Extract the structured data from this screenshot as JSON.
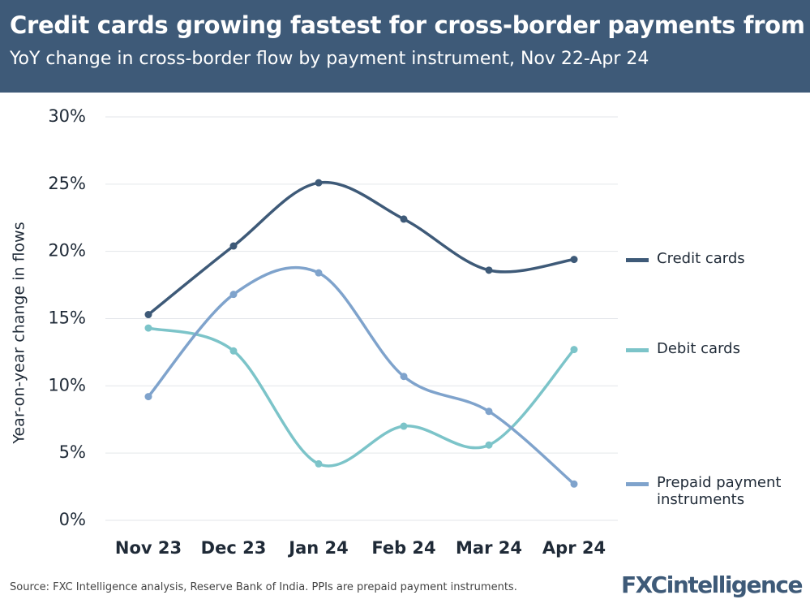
{
  "chart_data": {
    "type": "line",
    "title": "Credit cards growing fastest for cross-border payments from India",
    "subtitle": "YoY change in cross-border flow by payment instrument, Nov 22-Apr 24",
    "y_label": "Year-on-year change in flows",
    "categories": [
      "Nov 23",
      "Dec 23",
      "Jan 24",
      "Feb 24",
      "Mar 24",
      "Apr 24"
    ],
    "series": [
      {
        "name": "Credit cards",
        "color": "#3e5a78",
        "values": [
          15.3,
          20.4,
          25.1,
          22.4,
          18.6,
          19.4
        ]
      },
      {
        "name": "Debit cards",
        "color": "#7cc4c9",
        "values": [
          14.3,
          12.6,
          4.2,
          7.0,
          5.6,
          12.7
        ]
      },
      {
        "name": "Prepaid payment instruments",
        "color": "#7fa3cc",
        "values": [
          9.2,
          16.8,
          18.4,
          10.7,
          8.1,
          2.7
        ]
      }
    ],
    "ylim": [
      0,
      30
    ],
    "yticks": [
      {
        "value": 0,
        "label": "0%"
      },
      {
        "value": 5,
        "label": "5%"
      },
      {
        "value": 10,
        "label": "10%"
      },
      {
        "value": 15,
        "label": "15%"
      },
      {
        "value": 20,
        "label": "20%"
      },
      {
        "value": 25,
        "label": "25%"
      },
      {
        "value": 30,
        "label": "30%"
      }
    ],
    "grid": true,
    "legend": "right",
    "smooth": true,
    "source": "Source: FXC Intelligence analysis, Reserve Bank of India. PPIs are prepaid payment instruments.",
    "logo": "FXCintelligence"
  }
}
